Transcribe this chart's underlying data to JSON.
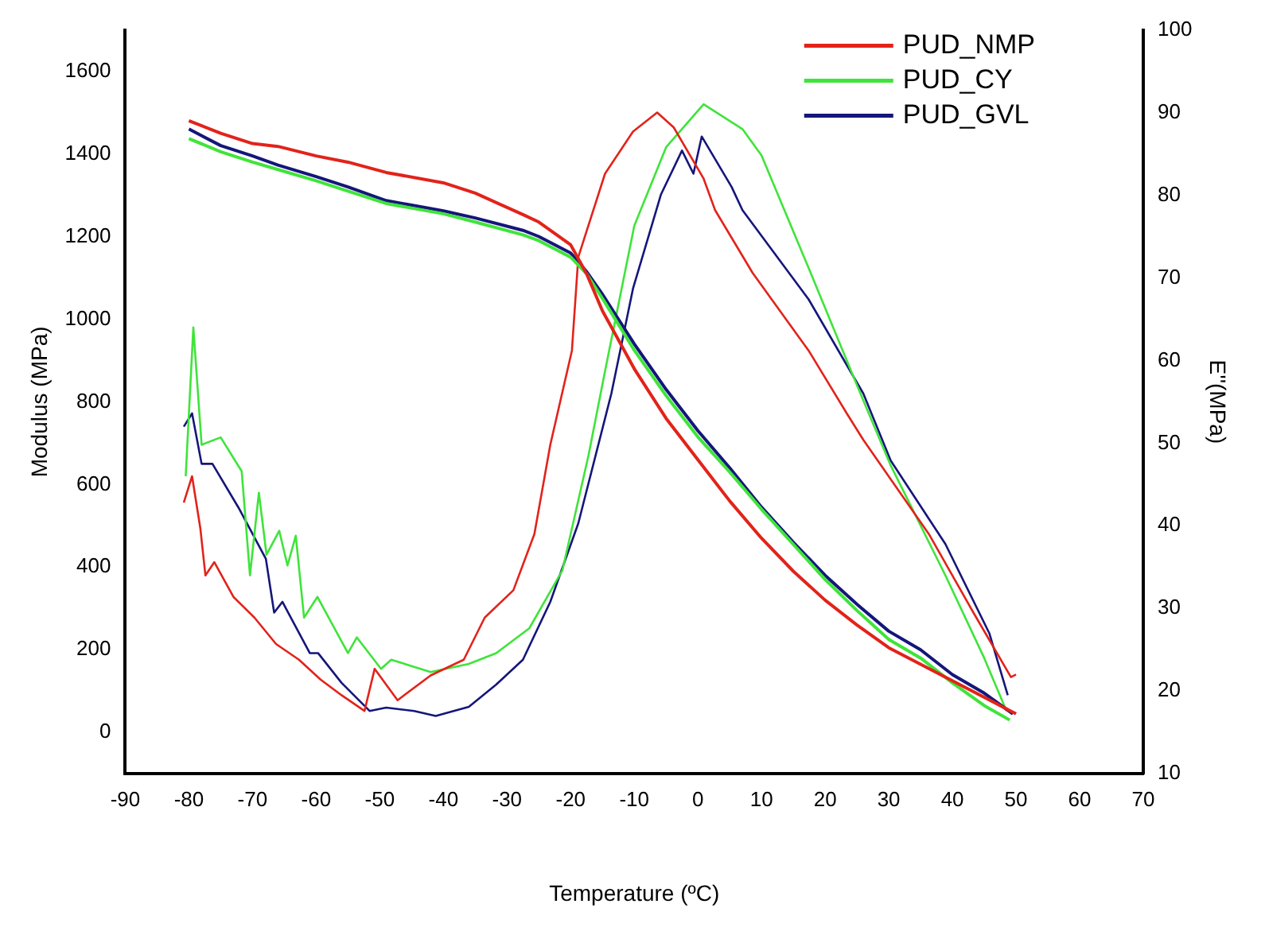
{
  "chart_data": {
    "type": "line",
    "xlabel": "Temperature (ºC)",
    "ylabel": "Modulus (MPa)",
    "y2label": "E''(MPa)",
    "xlim": [
      -90,
      70
    ],
    "xticks": [
      -90,
      -80,
      -70,
      -60,
      -50,
      -40,
      -30,
      -20,
      -10,
      0,
      10,
      20,
      30,
      40,
      50,
      60,
      70
    ],
    "ylim": [
      -100,
      1700
    ],
    "yticks": [
      0,
      200,
      400,
      600,
      800,
      1000,
      1200,
      1400,
      1600
    ],
    "y2lim": [
      10,
      100
    ],
    "y2ticks": [
      10,
      20,
      30,
      40,
      50,
      60,
      70,
      80,
      90,
      100
    ],
    "grid": false,
    "legend": "top right",
    "marker": "none",
    "line_style": "solid",
    "series": [
      {
        "name": "PUD_NMP",
        "color": "#e2231a",
        "x": [
          -80,
          -75,
          -70,
          -66,
          -60,
          -55,
          -49,
          -40,
          -35,
          -27.5,
          -25,
          -20,
          -17.5,
          -15,
          -10,
          -5,
          0,
          5,
          10,
          15,
          20,
          25,
          30,
          35,
          40,
          45,
          50
        ],
        "values": [
          1480,
          1450,
          1425,
          1418,
          1395,
          1380,
          1355,
          1330,
          1305,
          1253,
          1235,
          1180,
          1110,
          1020,
          880,
          760,
          660,
          560,
          470,
          390,
          320,
          260,
          205,
          165,
          125,
          85,
          45
        ]
      },
      {
        "name": "PUD_CY",
        "color": "#3fe43a",
        "x": [
          -80,
          -75,
          -70,
          -66,
          -60,
          -55,
          -49,
          -40,
          -35,
          -27.5,
          -25,
          -20,
          -17.5,
          -15,
          -10,
          -5,
          0,
          5,
          10,
          15,
          20,
          25,
          30,
          35,
          40,
          45,
          49
        ],
        "values": [
          1437,
          1405,
          1380,
          1362,
          1335,
          1310,
          1280,
          1255,
          1235,
          1204,
          1190,
          1150,
          1110,
          1050,
          925,
          815,
          715,
          630,
          540,
          455,
          370,
          295,
          225,
          180,
          120,
          65,
          30
        ]
      },
      {
        "name": "PUD_GVL",
        "color": "#15167a",
        "x": [
          -80,
          -75,
          -70,
          -66,
          -60,
          -55,
          -49,
          -40,
          -35,
          -27.5,
          -25,
          -20,
          -17.5,
          -15,
          -10,
          -5,
          0,
          5,
          10,
          15,
          20,
          25,
          30,
          35,
          40,
          45,
          49.5
        ],
        "values": [
          1460,
          1420,
          1395,
          1373,
          1345,
          1320,
          1287,
          1262,
          1245,
          1215,
          1200,
          1160,
          1115,
          1060,
          940,
          830,
          730,
          640,
          545,
          460,
          380,
          310,
          245,
          200,
          140,
          95,
          45
        ]
      },
      {
        "axis": "y2",
        "color": "#e2231a",
        "x": [
          -80.8,
          -79.5,
          -78.2,
          -77.4,
          -76,
          -73,
          -69.7,
          -66.3,
          -62.7,
          -59.3,
          -56,
          -52.4,
          -50.8,
          -47.2,
          -42,
          -36.8,
          -33.5,
          -29,
          -25.7,
          -23.2,
          -19.8,
          -18.8,
          -14.6,
          -10.2,
          -6.4,
          -3.8,
          0.9,
          2.7,
          8.6,
          17.4,
          23.4,
          26,
          36.3,
          43.3,
          49.2,
          50
        ],
        "values": [
          42.8,
          46,
          39.7,
          34,
          35.6,
          31.4,
          28.9,
          25.7,
          23.8,
          21.4,
          19.5,
          17.6,
          22.7,
          18.9,
          21.9,
          23.8,
          28.9,
          32.2,
          39,
          49.8,
          61.2,
          72.5,
          82.6,
          87.7,
          90,
          88.2,
          82,
          78.2,
          70.6,
          61.2,
          53.6,
          50.4,
          39,
          29.5,
          21.7,
          22
        ]
      },
      {
        "axis": "y2",
        "color": "#3fe43a",
        "x": [
          -80.5,
          -79.3,
          -78,
          -75,
          -71.7,
          -70.4,
          -69,
          -67.8,
          -65.8,
          -64.5,
          -63.2,
          -61.9,
          -59.8,
          -55,
          -53.6,
          -49.8,
          -48.2,
          -42,
          -36,
          -31.7,
          -26.5,
          -21.3,
          -17.2,
          -14.6,
          -10,
          -5,
          0.9,
          7,
          10,
          17.4,
          25,
          30.3,
          38.9,
          45,
          48.5
        ],
        "values": [
          46,
          64,
          49.8,
          50.7,
          46.6,
          34,
          44,
          36.5,
          39.4,
          35.2,
          38.8,
          28.9,
          31.4,
          24.6,
          26.5,
          22.7,
          23.8,
          22.3,
          23.3,
          24.6,
          27.6,
          34.6,
          48.5,
          58.7,
          76.3,
          85.8,
          91,
          88,
          84.8,
          71.2,
          57,
          47.3,
          34,
          24,
          17.6
        ]
      },
      {
        "axis": "y2",
        "color": "#15167a",
        "x": [
          -80.8,
          -79.5,
          -78,
          -76.3,
          -72.2,
          -67.9,
          -66.6,
          -65.3,
          -61,
          -59.7,
          -56,
          -51.6,
          -49,
          -44.6,
          -41.2,
          -36,
          -31.7,
          -27.5,
          -23.2,
          -18.8,
          -13.6,
          -10.2,
          -5.8,
          -2.5,
          -0.7,
          0.6,
          5.3,
          7,
          17.4,
          26,
          30.3,
          38.9,
          45.8,
          48.7
        ],
        "values": [
          52,
          53.6,
          47.5,
          47.5,
          42.2,
          36,
          29.5,
          30.8,
          24.6,
          24.6,
          21,
          17.6,
          18,
          17.6,
          17,
          18.1,
          20.8,
          23.8,
          30.8,
          40.3,
          56,
          68.7,
          80.1,
          85.4,
          82.6,
          87.1,
          81,
          78.2,
          67.4,
          56,
          47.9,
          37.8,
          27,
          19.5
        ]
      }
    ]
  }
}
